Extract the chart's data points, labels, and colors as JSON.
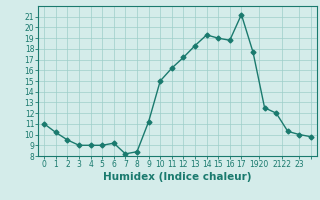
{
  "xlabel": "Humidex (Indice chaleur)",
  "x": [
    0,
    1,
    2,
    3,
    4,
    5,
    6,
    7,
    8,
    9,
    10,
    11,
    12,
    13,
    14,
    15,
    16,
    17,
    18,
    19,
    20,
    21,
    22,
    23
  ],
  "y": [
    11,
    10.2,
    9.5,
    9,
    9,
    9,
    9.2,
    8.2,
    8.4,
    11.2,
    15,
    16.2,
    17.2,
    18.3,
    19.3,
    19,
    18.8,
    21.2,
    17.7,
    12.5,
    12,
    10.3,
    10,
    9.8
  ],
  "line_color": "#1a7a6e",
  "marker": "D",
  "markersize": 2.5,
  "linewidth": 1.0,
  "bg_color": "#d4ecea",
  "grid_color": "#9ececa",
  "xlim": [
    -0.5,
    23.5
  ],
  "ylim": [
    8,
    22
  ],
  "yticks": [
    8,
    9,
    10,
    11,
    12,
    13,
    14,
    15,
    16,
    17,
    18,
    19,
    20,
    21
  ],
  "tick_fontsize": 5.5,
  "xlabel_fontsize": 7.5
}
